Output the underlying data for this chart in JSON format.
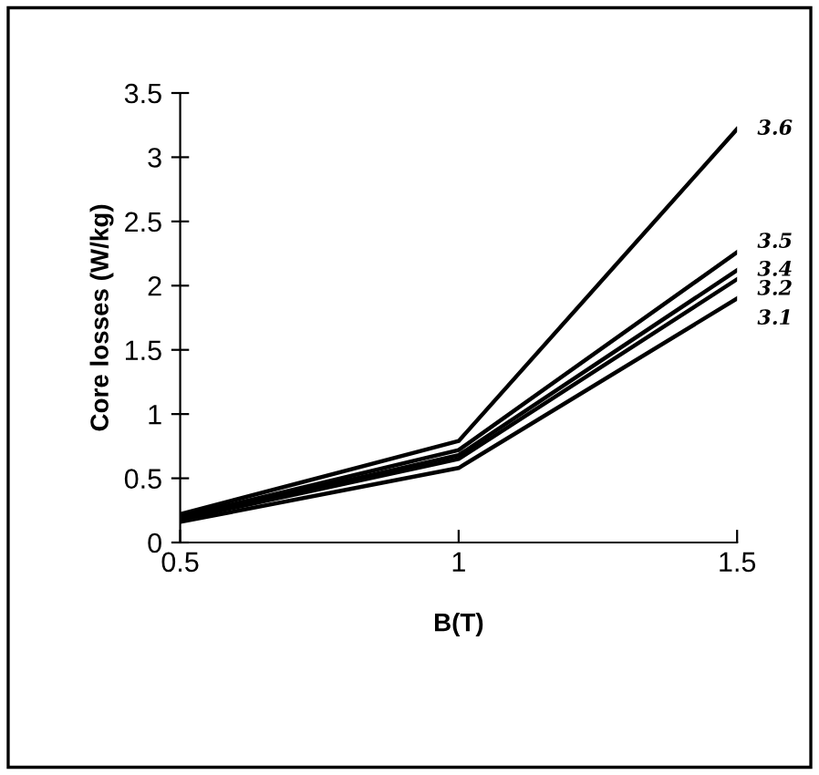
{
  "chart_data": {
    "type": "line",
    "xlabel": "B(T)",
    "ylabel": "Core losses (W/kg)",
    "x": [
      0.5,
      1,
      1.5
    ],
    "series": [
      {
        "name": "3.6",
        "color": "#000000",
        "values": [
          0.22,
          0.79,
          3.22
        ]
      },
      {
        "name": "3.5",
        "color": "#000000",
        "values": [
          0.2,
          0.72,
          2.26
        ]
      },
      {
        "name": "3.4",
        "color": "#000000",
        "values": [
          0.19,
          0.68,
          2.12
        ]
      },
      {
        "name": "3.2",
        "color": "#000000",
        "values": [
          0.18,
          0.65,
          2.05
        ]
      },
      {
        "name": "3.1",
        "color": "#000000",
        "values": [
          0.16,
          0.58,
          1.9
        ]
      }
    ],
    "xlim": [
      0.5,
      1.5
    ],
    "xticks": [
      0.5,
      1,
      1.5
    ],
    "ylim": [
      0,
      3.5
    ],
    "yticks": [
      0,
      0.5,
      1,
      1.5,
      2,
      2.5,
      3,
      3.5
    ],
    "grid": false,
    "legend": false,
    "marker": "none",
    "line_style": "solid"
  }
}
